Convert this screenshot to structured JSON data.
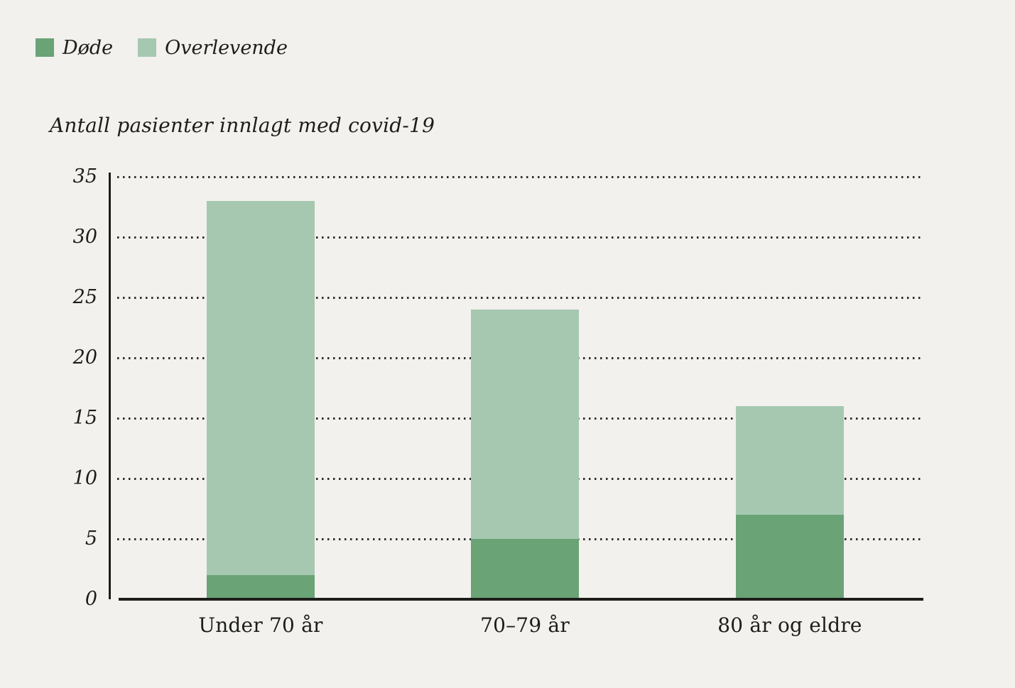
{
  "legend": {
    "items": [
      {
        "label": "Døde",
        "color": "#6aa376"
      },
      {
        "label": "Overlevende",
        "color": "#a6c8b0"
      }
    ]
  },
  "chart_data": {
    "type": "bar",
    "stacked": true,
    "title": "Antall pasienter innlagt med covid-19",
    "categories": [
      "Under 70 år",
      "70–79 år",
      "80 år og eldre"
    ],
    "series": [
      {
        "name": "Døde",
        "color": "#6aa376",
        "values": [
          2,
          5,
          7
        ]
      },
      {
        "name": "Overlevende",
        "color": "#a6c8b0",
        "values": [
          31,
          19,
          9
        ]
      }
    ],
    "totals": [
      33,
      24,
      16
    ],
    "ylabel": "Antall pasienter innlagt med covid-19",
    "xlabel": "",
    "ylim": [
      0,
      35
    ],
    "yticks": [
      0,
      5,
      10,
      15,
      20,
      25,
      30,
      35
    ],
    "grid": "horizontal-dotted",
    "legend_position": "top-left",
    "background_color": "#f2f1ee",
    "text_color": "#1d1d1b"
  }
}
